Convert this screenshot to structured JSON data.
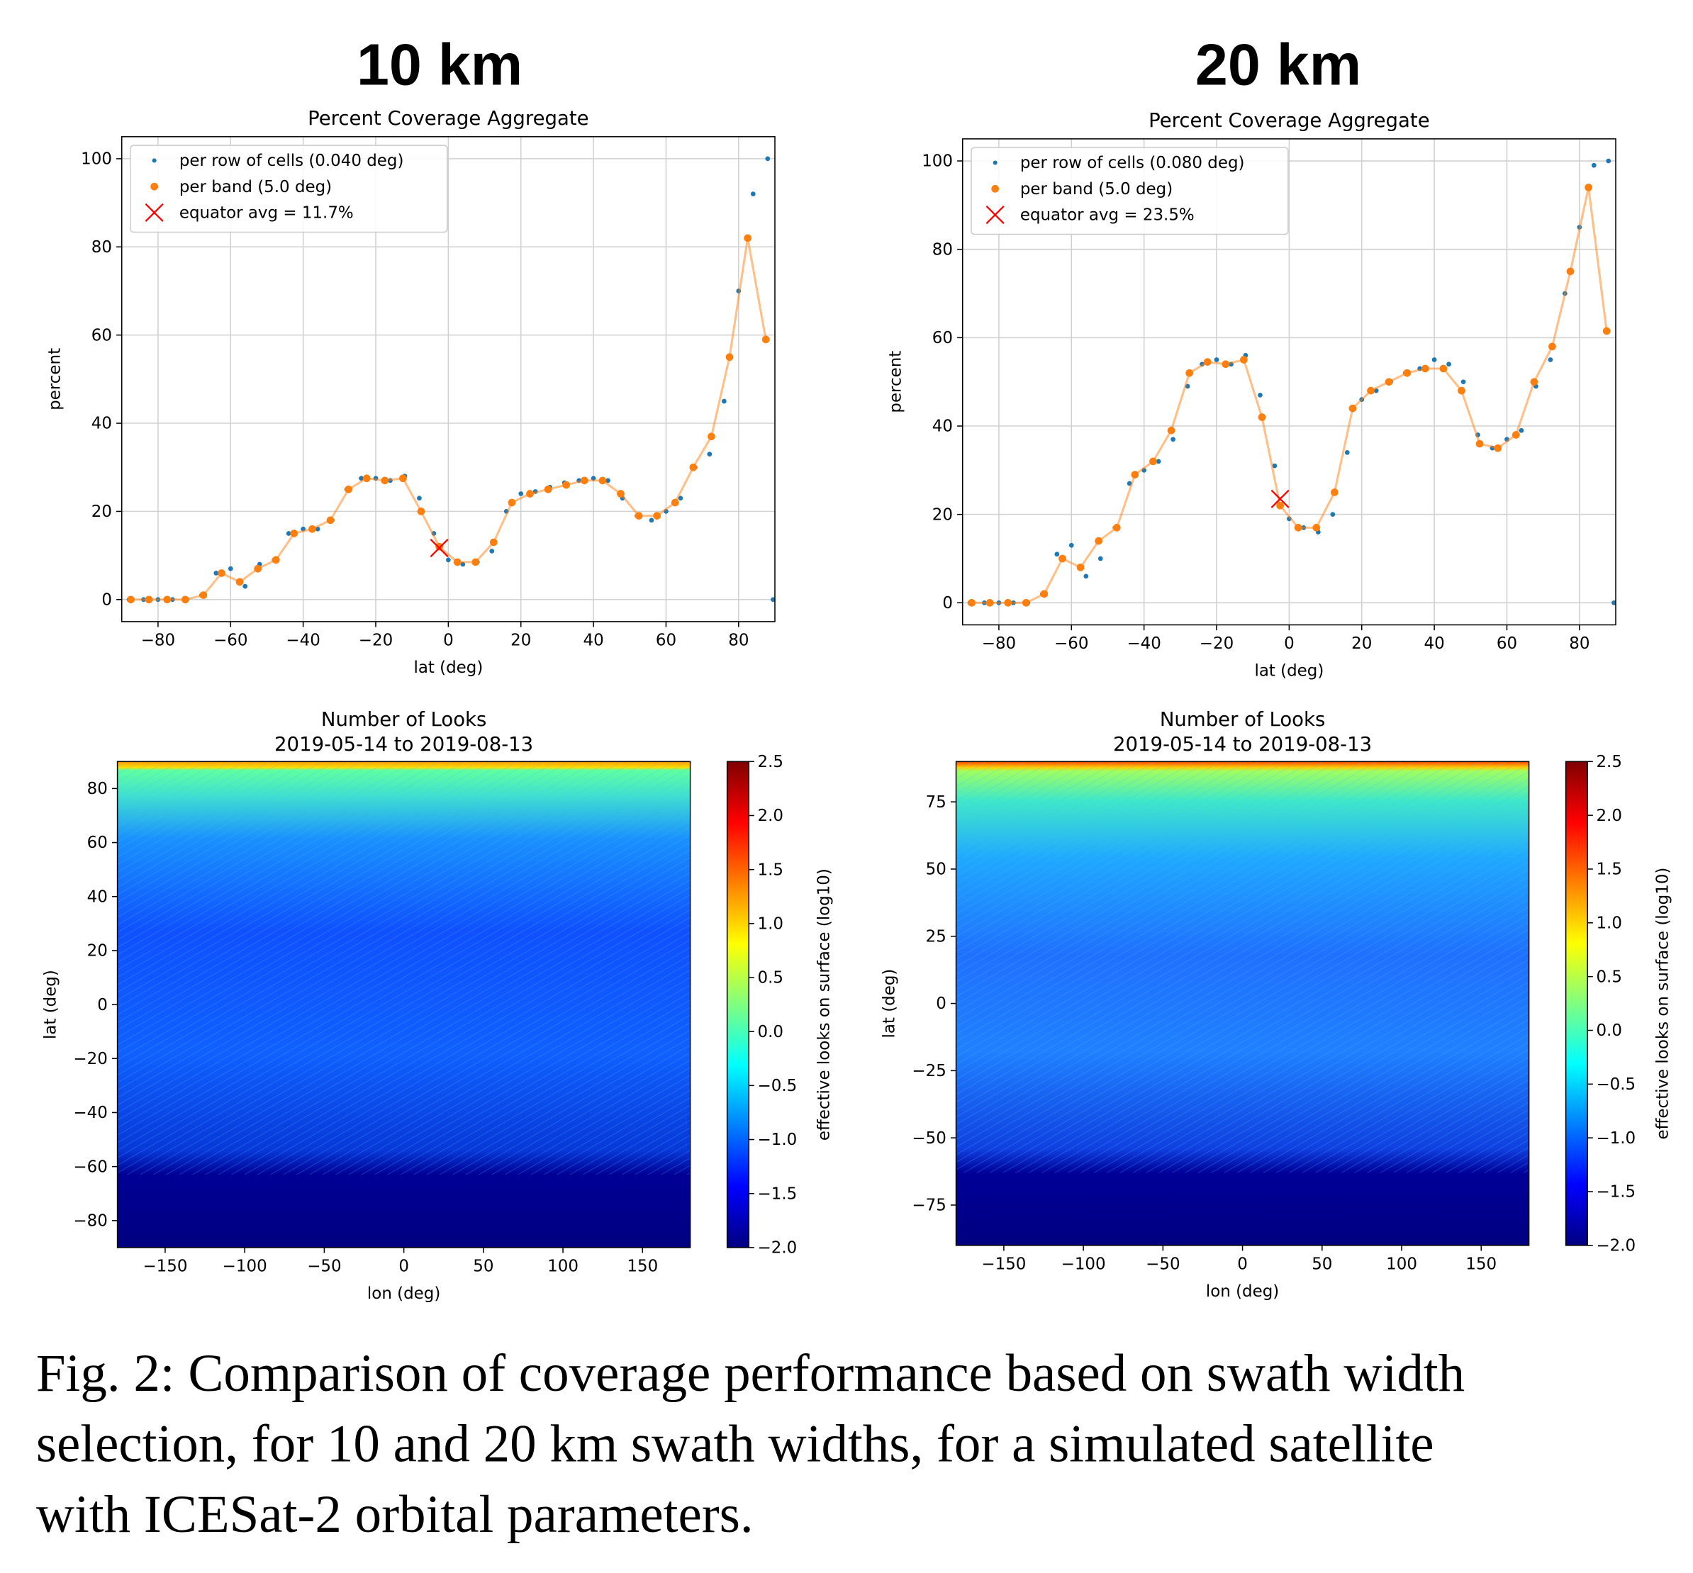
{
  "chart_data": [
    {
      "type": "line",
      "heading": "10 km",
      "title": "Percent Coverage Aggregate",
      "xlabel": "lat (deg)",
      "ylabel": "percent",
      "xlim": [
        -90,
        90
      ],
      "ylim": [
        -5,
        105
      ],
      "grid": true,
      "legend": "upper left",
      "xticks": [
        {
          "value": -80,
          "label": "−80"
        },
        {
          "value": -60,
          "label": "−60"
        },
        {
          "value": -40,
          "label": "−40"
        },
        {
          "value": -20,
          "label": "−20"
        },
        0,
        20,
        40,
        60,
        80
      ],
      "yticks": [
        0,
        20,
        40,
        60,
        80,
        100
      ],
      "series": [
        {
          "name": "per row of cells (0.040 deg)",
          "color": "#1f77b4",
          "style": "points",
          "x": [
            -88,
            -84,
            -80,
            -76,
            -72,
            -68,
            -64,
            -60,
            -56,
            -52,
            -48,
            -44,
            -40,
            -36,
            -32,
            -28,
            -24,
            -20,
            -16,
            -12,
            -8,
            -4,
            0,
            4,
            8,
            12,
            16,
            20,
            24,
            28,
            32,
            36,
            40,
            44,
            48,
            52,
            56,
            60,
            64,
            68,
            72,
            76,
            80,
            84,
            88,
            89.5
          ],
          "values": [
            0,
            0,
            0,
            0,
            0,
            1,
            6,
            7,
            3,
            8,
            9,
            15,
            16,
            16,
            18,
            25,
            27.5,
            27.5,
            27,
            28,
            23,
            15,
            9,
            8,
            8.5,
            11,
            20,
            24,
            24.5,
            25.5,
            26.5,
            27,
            27.5,
            27,
            23,
            19,
            18,
            20,
            23,
            30,
            33,
            45,
            70,
            92,
            100,
            0
          ]
        },
        {
          "name": "per band (5.0 deg)",
          "color": "#ff7f0e",
          "style": "line-markers",
          "x": [
            -87.5,
            -82.5,
            -77.5,
            -72.5,
            -67.5,
            -62.5,
            -57.5,
            -52.5,
            -47.5,
            -42.5,
            -37.5,
            -32.5,
            -27.5,
            -22.5,
            -17.5,
            -12.5,
            -7.5,
            -2.5,
            2.5,
            7.5,
            12.5,
            17.5,
            22.5,
            27.5,
            32.5,
            37.5,
            42.5,
            47.5,
            52.5,
            57.5,
            62.5,
            67.5,
            72.5,
            77.5,
            82.5,
            87.5
          ],
          "values": [
            0,
            0,
            0,
            0,
            1,
            6,
            4,
            7,
            9,
            15,
            16,
            18,
            25,
            27.5,
            27,
            27.5,
            20,
            12,
            8.5,
            8.5,
            13,
            22,
            24,
            25,
            26,
            27,
            27,
            24,
            19,
            19,
            22,
            30,
            37,
            55,
            82,
            59
          ]
        },
        {
          "name": "equator avg = 11.7%",
          "color": "#ff0000",
          "style": "x-marker",
          "x": [
            -2.5
          ],
          "values": [
            11.7
          ]
        }
      ]
    },
    {
      "type": "line",
      "heading": "20 km",
      "title": "Percent Coverage Aggregate",
      "xlabel": "lat (deg)",
      "ylabel": "percent",
      "xlim": [
        -90,
        90
      ],
      "ylim": [
        -5,
        105
      ],
      "grid": true,
      "legend": "upper left",
      "xticks": [
        {
          "value": -80,
          "label": "−80"
        },
        {
          "value": -60,
          "label": "−60"
        },
        {
          "value": -40,
          "label": "−40"
        },
        {
          "value": -20,
          "label": "−20"
        },
        0,
        20,
        40,
        60,
        80
      ],
      "yticks": [
        0,
        20,
        40,
        60,
        80,
        100
      ],
      "series": [
        {
          "name": "per row of cells (0.080 deg)",
          "color": "#1f77b4",
          "style": "points",
          "x": [
            -88,
            -84,
            -80,
            -76,
            -72,
            -68,
            -64,
            -60,
            -56,
            -52,
            -48,
            -44,
            -40,
            -36,
            -32,
            -28,
            -24,
            -20,
            -16,
            -12,
            -8,
            -4,
            0,
            4,
            8,
            12,
            16,
            20,
            24,
            28,
            32,
            36,
            40,
            44,
            48,
            52,
            56,
            60,
            64,
            68,
            72,
            76,
            80,
            84,
            88,
            89.5
          ],
          "values": [
            0,
            0,
            0,
            0,
            0,
            2,
            11,
            13,
            6,
            10,
            17,
            27,
            30,
            32,
            37,
            49,
            54,
            55,
            54,
            56,
            47,
            31,
            19,
            17,
            16,
            20,
            34,
            46,
            48,
            50,
            52,
            53,
            55,
            54,
            50,
            38,
            35,
            37,
            39,
            49,
            55,
            70,
            85,
            99,
            100,
            0
          ]
        },
        {
          "name": "per band (5.0 deg)",
          "color": "#ff7f0e",
          "style": "line-markers",
          "x": [
            -87.5,
            -82.5,
            -77.5,
            -72.5,
            -67.5,
            -62.5,
            -57.5,
            -52.5,
            -47.5,
            -42.5,
            -37.5,
            -32.5,
            -27.5,
            -22.5,
            -17.5,
            -12.5,
            -7.5,
            -2.5,
            2.5,
            7.5,
            12.5,
            17.5,
            22.5,
            27.5,
            32.5,
            37.5,
            42.5,
            47.5,
            52.5,
            57.5,
            62.5,
            67.5,
            72.5,
            77.5,
            82.5,
            87.5
          ],
          "values": [
            0,
            0,
            0,
            0,
            2,
            10,
            8,
            14,
            17,
            29,
            32,
            39,
            52,
            54.5,
            54,
            55,
            42,
            22,
            17,
            17,
            25,
            44,
            48,
            50,
            52,
            53,
            53,
            48,
            36,
            35,
            38,
            50,
            58,
            75,
            94,
            61.5
          ]
        },
        {
          "name": "equator avg = 23.5%",
          "color": "#ff0000",
          "style": "x-marker",
          "x": [
            -2.5
          ],
          "values": [
            23.5
          ]
        }
      ]
    },
    {
      "type": "heatmap",
      "title": "Number of Looks",
      "subtitle": "2019-05-14 to 2019-08-13",
      "xlabel": "lon (deg)",
      "ylabel": "lat (deg)",
      "xlim": [
        -180,
        180
      ],
      "ylim": [
        -90,
        90
      ],
      "xticks": [
        {
          "value": -150,
          "label": "−150"
        },
        {
          "value": -100,
          "label": "−100"
        },
        {
          "value": -50,
          "label": "−50"
        },
        0,
        50,
        100,
        150
      ],
      "yticks": [
        {
          "value": -80,
          "label": "−80"
        },
        {
          "value": -60,
          "label": "−60"
        },
        {
          "value": -40,
          "label": "−40"
        },
        {
          "value": -20,
          "label": "−20"
        },
        0,
        20,
        40,
        60,
        80
      ],
      "colorbar": {
        "label": "effective looks on surface (log10)",
        "colormap": "jet",
        "lim": [
          -2,
          2.5
        ],
        "ticks": [
          {
            "value": -2,
            "label": "−2.0"
          },
          {
            "value": -1.5,
            "label": "−1.5"
          },
          {
            "value": -1,
            "label": "−1.0"
          },
          {
            "value": -0.5,
            "label": "−0.5"
          },
          {
            "value": 0,
            "label": "0.0"
          },
          0.5,
          {
            "value": 1,
            "label": "1.0"
          },
          1.5,
          {
            "value": 2,
            "label": "2.0"
          },
          2.5
        ]
      }
    },
    {
      "type": "heatmap",
      "title": "Number of Looks",
      "subtitle": "2019-05-14 to 2019-08-13",
      "xlabel": "lon (deg)",
      "ylabel": "lat (deg)",
      "xlim": [
        -180,
        180
      ],
      "ylim": [
        -90,
        90
      ],
      "xticks": [
        {
          "value": -150,
          "label": "−150"
        },
        {
          "value": -100,
          "label": "−100"
        },
        {
          "value": -50,
          "label": "−50"
        },
        0,
        50,
        100,
        150
      ],
      "yticks": [
        {
          "value": -75,
          "label": "−75"
        },
        {
          "value": -50,
          "label": "−50"
        },
        {
          "value": -25,
          "label": "−25"
        },
        0,
        25,
        50,
        75
      ],
      "colorbar": {
        "label": "effective looks on surface (log10)",
        "colormap": "jet",
        "lim": [
          -2,
          2.5
        ],
        "ticks": [
          {
            "value": -2,
            "label": "−2.0"
          },
          {
            "value": -1.5,
            "label": "−1.5"
          },
          {
            "value": -1,
            "label": "−1.0"
          },
          {
            "value": -0.5,
            "label": "−0.5"
          },
          {
            "value": 0,
            "label": "0.0"
          },
          0.5,
          {
            "value": 1,
            "label": "1.0"
          },
          1.5,
          {
            "value": 2,
            "label": "2.0"
          },
          2.5
        ]
      }
    }
  ],
  "caption": [
    "Fig. 2: Comparison of coverage performance based on swath width",
    "selection, for 10 and 20 km swath widths, for a simulated satellite",
    "with ICESat-2 orbital parameters."
  ]
}
